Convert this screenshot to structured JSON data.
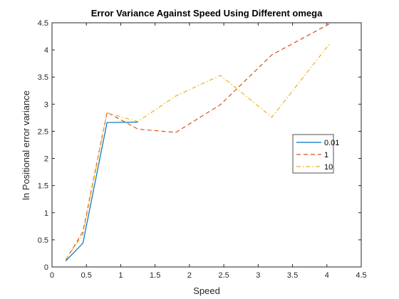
{
  "chart_data": {
    "type": "line",
    "title": "Error Variance Against Speed Using Different omega",
    "xlabel": "Speed",
    "ylabel": "ln Positional error variance",
    "xlim": [
      0,
      4.5
    ],
    "ylim": [
      0,
      4.5
    ],
    "xticks": [
      "0",
      "0.5",
      "1",
      "1.5",
      "2",
      "2.5",
      "3",
      "3.5",
      "4",
      "4.5"
    ],
    "yticks": [
      "0",
      "0.5",
      "1",
      "1.5",
      "2",
      "2.5",
      "3",
      "3.5",
      "4",
      "4.5"
    ],
    "grid": false,
    "legend_position": "right",
    "series": [
      {
        "name": "0.01",
        "color": "#0072BD",
        "dash": "solid",
        "x": [
          0.2,
          0.45,
          0.8,
          1.25
        ],
        "y": [
          0.11,
          0.44,
          2.66,
          2.67
        ]
      },
      {
        "name": "1",
        "color": "#D95319",
        "dash": "dashed",
        "x": [
          0.2,
          0.45,
          0.8,
          1.25,
          1.8,
          2.45,
          3.2,
          4.05
        ],
        "y": [
          0.13,
          0.65,
          2.85,
          2.54,
          2.48,
          2.99,
          3.91,
          4.49
        ]
      },
      {
        "name": "10",
        "color": "#EDB120",
        "dash": "dashdot",
        "x": [
          0.2,
          0.45,
          0.8,
          1.25,
          1.8,
          2.45,
          3.2,
          4.05
        ],
        "y": [
          0.14,
          0.6,
          2.84,
          2.68,
          3.15,
          3.53,
          2.76,
          4.13
        ]
      }
    ]
  }
}
